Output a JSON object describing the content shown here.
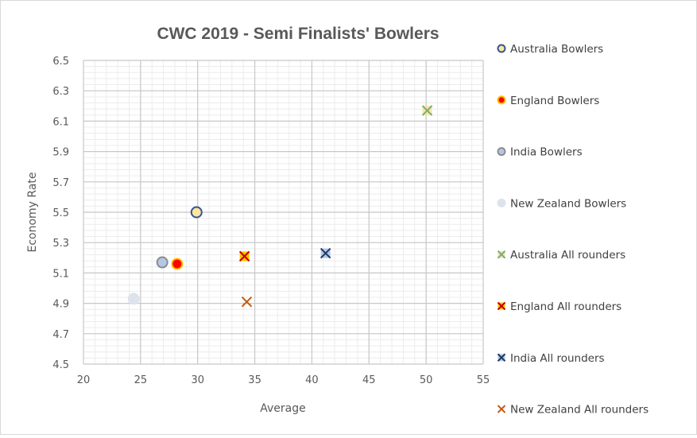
{
  "chart_data": {
    "type": "scatter",
    "title": "CWC 2019 - Semi Finalists' Bowlers",
    "xlabel": "Average",
    "ylabel": "Economy Rate",
    "xlim": [
      20,
      55
    ],
    "ylim": [
      4.5,
      6.5
    ],
    "x_major_step": 5,
    "y_major_step": 0.2,
    "x_tick_labels": [
      "20",
      "25",
      "30",
      "35",
      "40",
      "45",
      "50",
      "55"
    ],
    "y_tick_labels": [
      "4.5",
      "4.7",
      "4.9",
      "5.1",
      "5.3",
      "5.5",
      "5.7",
      "5.9",
      "6.1",
      "6.3",
      "6.5"
    ],
    "grid": true,
    "minor_grid": true,
    "legend_position": "right",
    "series": [
      {
        "name": "Australia Bowlers",
        "marker": "circle",
        "fill": "#ffe699",
        "stroke": "#2f5597",
        "points": [
          {
            "x": 29.9,
            "y": 5.5
          }
        ]
      },
      {
        "name": "England Bowlers",
        "marker": "circle",
        "fill": "#ff0000",
        "stroke": "#ffc000",
        "points": [
          {
            "x": 28.2,
            "y": 5.16
          }
        ]
      },
      {
        "name": "India Bowlers",
        "marker": "circle",
        "fill": "#b4c7e7",
        "stroke": "#8c8c8c",
        "points": [
          {
            "x": 26.9,
            "y": 5.17
          }
        ]
      },
      {
        "name": "New Zealand Bowlers",
        "marker": "circle",
        "fill": "#dde3ea",
        "stroke": "#dde3ea",
        "points": [
          {
            "x": 24.4,
            "y": 4.93
          }
        ]
      },
      {
        "name": "Australia All rounders",
        "marker": "x",
        "fill": "#ffe699",
        "stroke": "#70ad8e",
        "points": [
          {
            "x": 50.1,
            "y": 6.17
          }
        ]
      },
      {
        "name": "England All rounders",
        "marker": "x",
        "fill": "#ffc000",
        "stroke": "#c00000",
        "points": [
          {
            "x": 34.1,
            "y": 5.21
          }
        ]
      },
      {
        "name": "India All rounders",
        "marker": "x",
        "fill": "#b4c7e7",
        "stroke": "#203864",
        "points": [
          {
            "x": 41.2,
            "y": 5.23
          }
        ]
      },
      {
        "name": "New Zealand All rounders",
        "marker": "x",
        "fill": "none",
        "stroke": "#c55a11",
        "points": [
          {
            "x": 34.3,
            "y": 4.91
          }
        ]
      }
    ]
  }
}
